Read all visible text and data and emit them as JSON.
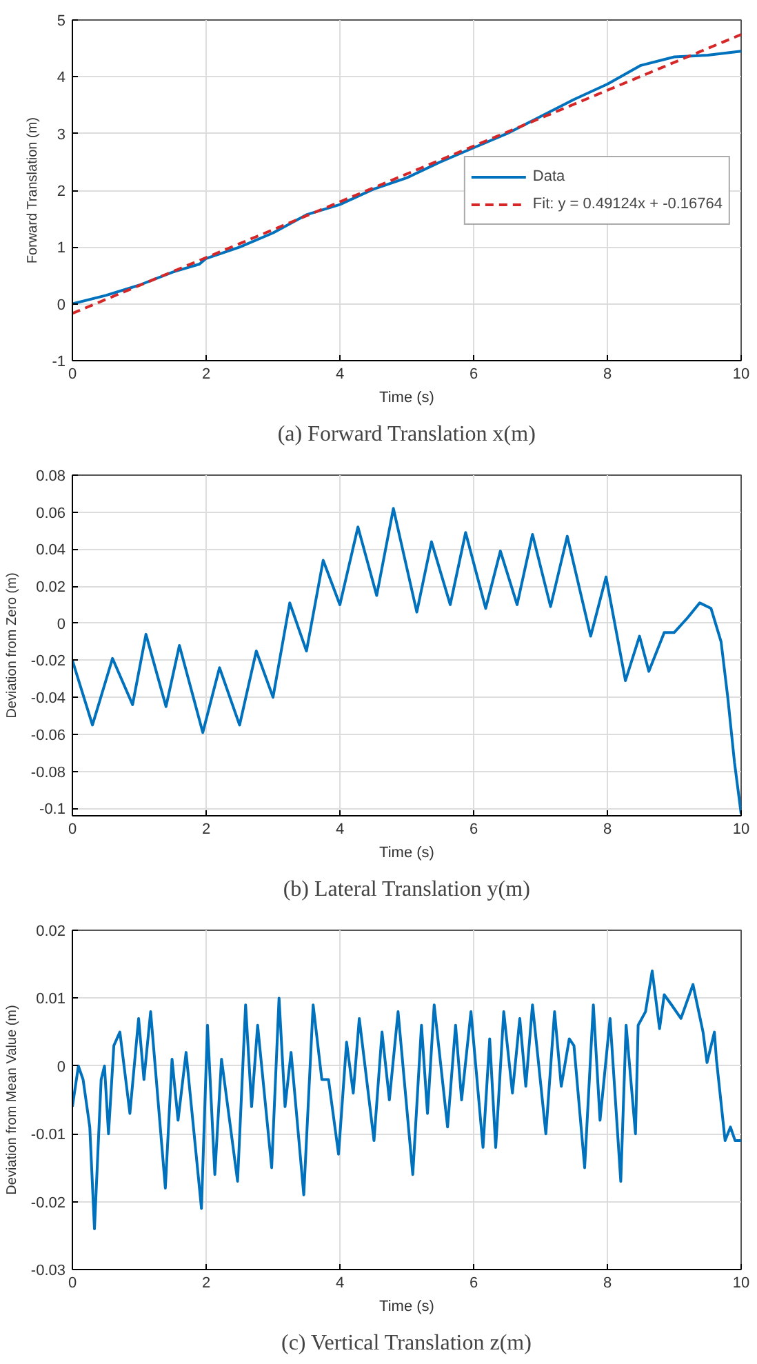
{
  "chart_data": [
    {
      "type": "line",
      "title": "(a) Forward Translation x(m)",
      "xlabel": "Time (s)",
      "ylabel": "Forward Translation (m)",
      "xlim": [
        0,
        10
      ],
      "xticks": [
        0,
        2,
        4,
        6,
        8,
        10
      ],
      "ylim": [
        -1,
        5
      ],
      "yticks": [
        -1,
        0,
        1,
        2,
        3,
        4,
        5
      ],
      "grid": true,
      "legend": "right",
      "series": [
        {
          "name": "Data",
          "color": "#0072bd",
          "line_style": "solid",
          "x": [
            0,
            0.5,
            1,
            1.5,
            1.9,
            2,
            2.5,
            3,
            3.5,
            4,
            4.5,
            5,
            5.5,
            6,
            6.5,
            7,
            7.5,
            8,
            8.5,
            9,
            9.5,
            10
          ],
          "values": [
            0,
            0.15,
            0.33,
            0.56,
            0.7,
            0.8,
            1.0,
            1.25,
            1.57,
            1.75,
            2.02,
            2.22,
            2.5,
            2.75,
            3.0,
            3.3,
            3.6,
            3.87,
            4.2,
            4.35,
            4.38,
            4.45
          ]
        },
        {
          "name": "Fit: y = 0.49124x + -0.16764",
          "color": "#d62728",
          "line_style": "dashed",
          "x": [
            0,
            10
          ],
          "values": [
            -0.16764,
            4.74476
          ]
        }
      ]
    },
    {
      "type": "line",
      "title": "(b) Lateral Translation y(m)",
      "xlabel": "Time (s)",
      "ylabel": "Deviation from Zero (m)",
      "xlim": [
        0,
        10
      ],
      "xticks": [
        0,
        2,
        4,
        6,
        8,
        10
      ],
      "ylim": [
        -0.104,
        0.08
      ],
      "yticks": [
        -0.1,
        -0.08,
        -0.06,
        -0.04,
        -0.02,
        0,
        0.02,
        0.04,
        0.06,
        0.08
      ],
      "grid": true,
      "series": [
        {
          "color": "#0072bd",
          "line_style": "solid",
          "x": [
            0,
            0.3,
            0.6,
            0.9,
            1.1,
            1.4,
            1.6,
            1.95,
            2.2,
            2.5,
            2.75,
            3.0,
            3.25,
            3.5,
            3.75,
            4.0,
            4.27,
            4.55,
            4.8,
            5.15,
            5.37,
            5.65,
            5.88,
            6.18,
            6.4,
            6.65,
            6.88,
            7.15,
            7.4,
            7.75,
            7.98,
            8.27,
            8.48,
            8.62,
            8.85,
            9.0,
            9.2,
            9.38,
            9.55,
            9.7,
            9.8,
            9.9,
            10
          ],
          "values": [
            -0.02,
            -0.055,
            -0.019,
            -0.044,
            -0.006,
            -0.045,
            -0.012,
            -0.059,
            -0.024,
            -0.055,
            -0.015,
            -0.04,
            0.011,
            -0.015,
            0.034,
            0.01,
            0.052,
            0.015,
            0.062,
            0.006,
            0.044,
            0.01,
            0.049,
            0.008,
            0.039,
            0.01,
            0.048,
            0.009,
            0.047,
            -0.007,
            0.025,
            -0.031,
            -0.007,
            -0.026,
            -0.005,
            -0.005,
            0.003,
            0.011,
            0.008,
            -0.01,
            -0.04,
            -0.075,
            -0.103
          ]
        }
      ]
    },
    {
      "type": "line",
      "title": "(c) Vertical Translation z(m)",
      "xlabel": "Time (s)",
      "ylabel": "Deviation from Mean Value (m)",
      "xlim": [
        0,
        10
      ],
      "xticks": [
        0,
        2,
        4,
        6,
        8,
        10
      ],
      "ylim": [
        -0.03,
        0.02
      ],
      "yticks": [
        -0.03,
        -0.02,
        -0.01,
        0,
        0.01,
        0.02
      ],
      "grid": true,
      "series": [
        {
          "color": "#0072bd",
          "line_style": "solid",
          "x": [
            0,
            0.09,
            0.16,
            0.26,
            0.33,
            0.43,
            0.48,
            0.54,
            0.62,
            0.71,
            0.86,
            0.99,
            1.07,
            1.17,
            1.39,
            1.49,
            1.58,
            1.7,
            1.93,
            2.02,
            2.13,
            2.23,
            2.47,
            2.59,
            2.68,
            2.77,
            2.98,
            3.09,
            3.18,
            3.27,
            3.46,
            3.6,
            3.73,
            3.83,
            3.98,
            4.1,
            4.2,
            4.29,
            4.51,
            4.63,
            4.74,
            4.87,
            5.09,
            5.22,
            5.31,
            5.41,
            5.61,
            5.73,
            5.82,
            5.96,
            6.14,
            6.24,
            6.33,
            6.45,
            6.58,
            6.69,
            6.78,
            6.88,
            7.08,
            7.21,
            7.31,
            7.43,
            7.5,
            7.66,
            7.79,
            7.89,
            8.04,
            8.2,
            8.28,
            8.42,
            8.46,
            8.57,
            8.67,
            8.78,
            8.85,
            8.96,
            9.1,
            9.28,
            9.43,
            9.49,
            9.6,
            9.63,
            9.76,
            9.84,
            9.91,
            10
          ],
          "values": [
            -0.006,
            0,
            -0.002,
            -0.009,
            -0.024,
            -0.002,
            0,
            -0.01,
            0.003,
            0.005,
            -0.007,
            0.007,
            -0.002,
            0.008,
            -0.018,
            0.001,
            -0.008,
            0.002,
            -0.021,
            0.006,
            -0.016,
            0.001,
            -0.017,
            0.009,
            -0.006,
            0.006,
            -0.015,
            0.01,
            -0.006,
            0.002,
            -0.019,
            0.009,
            -0.002,
            -0.002,
            -0.013,
            0.0035,
            -0.004,
            0.007,
            -0.011,
            0.005,
            -0.005,
            0.008,
            -0.016,
            0.006,
            -0.007,
            0.009,
            -0.009,
            0.006,
            -0.005,
            0.008,
            -0.012,
            0.004,
            -0.012,
            0.008,
            -0.004,
            0.007,
            -0.003,
            0.009,
            -0.01,
            0.008,
            -0.003,
            0.004,
            0.003,
            -0.015,
            0.009,
            -0.008,
            0.007,
            -0.017,
            0.006,
            -0.01,
            0.006,
            0.008,
            0.014,
            0.0055,
            0.0105,
            0.009,
            0.007,
            0.012,
            0.005,
            0.0005,
            0.005,
            0.001,
            -0.011,
            -0.009,
            -0.011,
            -0.011
          ]
        }
      ]
    }
  ]
}
